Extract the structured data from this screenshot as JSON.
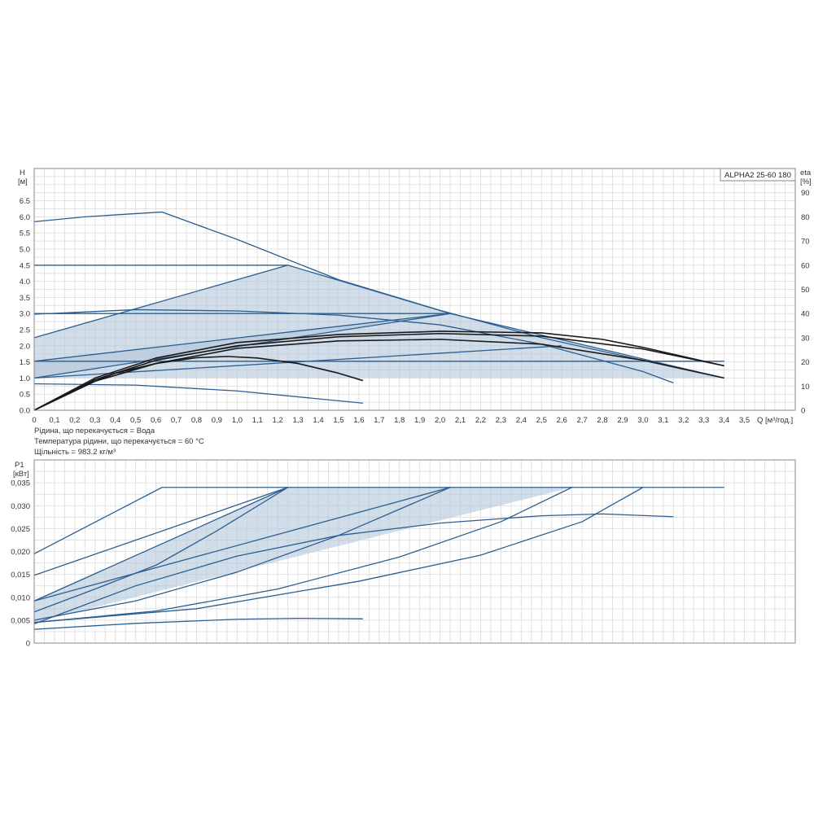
{
  "chart_data": [
    {
      "type": "line",
      "panel": "head",
      "legend": "ALPHA2 25-60 180",
      "y_label_symbol": "H",
      "y_label_unit": "[м]",
      "y2_label_symbol": "eta",
      "y2_label_unit": "[%]",
      "x_label": "Q [м³/год.]",
      "xlim": [
        0,
        3.75
      ],
      "ylim": [
        0,
        7.5
      ],
      "y2lim": [
        0,
        100
      ],
      "grid": true,
      "x_ticks": [
        "0",
        "0,1",
        "0,2",
        "0,3",
        "0,4",
        "0,5",
        "0,6",
        "0,7",
        "0,8",
        "0,9",
        "1,0",
        "1,1",
        "1,2",
        "1,3",
        "1,4",
        "1,5",
        "1,6",
        "1,7",
        "1,8",
        "1,9",
        "2,0",
        "2,1",
        "2,2",
        "2,3",
        "2,4",
        "2,5",
        "2,6",
        "2,7",
        "2,8",
        "2,9",
        "3,0",
        "3,1",
        "3,2",
        "3,3",
        "3,4",
        "3,5"
      ],
      "y_ticks": [
        "0.0",
        "0.5",
        "1.0",
        "1.5",
        "2.0",
        "2.5",
        "3.0",
        "3.5",
        "4.0",
        "4.5",
        "5.0",
        "5.5",
        "6.0",
        "6.5"
      ],
      "y2_ticks": [
        "0",
        "10",
        "20",
        "30",
        "40",
        "50",
        "60",
        "70",
        "80",
        "90"
      ],
      "shaded_regions": [
        {
          "x": [
            0,
            1.25,
            2.05,
            0,
            0
          ],
          "y": [
            2.25,
            4.5,
            3.0,
            1.0,
            2.25
          ]
        },
        {
          "x": [
            0,
            2.05,
            3.4,
            0,
            0
          ],
          "y": [
            1.52,
            3.0,
            1.0,
            1.0,
            1.52
          ]
        }
      ],
      "series": [
        {
          "x": [
            0,
            0.25,
            0.5,
            0.63,
            1.0,
            1.5,
            2.0,
            2.5,
            3.0,
            3.4
          ],
          "y": [
            5.85,
            6.0,
            6.1,
            6.15,
            5.3,
            4.05,
            3.1,
            2.25,
            1.55,
            1.0
          ],
          "color": "#2b5f91"
        },
        {
          "x": [
            0,
            1.25
          ],
          "y": [
            4.5,
            4.5
          ],
          "color": "#2b5f91"
        },
        {
          "x": [
            0,
            1.25
          ],
          "y": [
            2.25,
            4.5
          ],
          "color": "#2b5f91"
        },
        {
          "x": [
            1.25,
            2.05
          ],
          "y": [
            4.5,
            3.0
          ],
          "color": "#2b5f91"
        },
        {
          "x": [
            0,
            2.05
          ],
          "y": [
            3.0,
            3.0
          ],
          "color": "#2b5f91"
        },
        {
          "x": [
            0,
            2.05
          ],
          "y": [
            1.52,
            3.0
          ],
          "color": "#2b5f91"
        },
        {
          "x": [
            0,
            2.05
          ],
          "y": [
            1.0,
            3.0
          ],
          "color": "#2b5f91"
        },
        {
          "x": [
            2.05,
            3.4
          ],
          "y": [
            3.0,
            1.0
          ],
          "color": "#2b5f91"
        },
        {
          "x": [
            0,
            3.4
          ],
          "y": [
            1.52,
            1.52
          ],
          "color": "#2b5f91"
        },
        {
          "x": [
            0,
            0.5,
            1.0,
            1.5,
            2.0,
            2.5,
            3.0,
            3.15
          ],
          "y": [
            2.98,
            3.12,
            3.08,
            2.95,
            2.65,
            2.05,
            1.2,
            0.85
          ],
          "color": "#2b5f91"
        },
        {
          "x": [
            0,
            0.5,
            1.0,
            1.62
          ],
          "y": [
            0.82,
            0.78,
            0.6,
            0.22
          ],
          "color": "#2b5f91"
        },
        {
          "x": [
            0,
            2.6
          ],
          "y": [
            1.0,
            2.0
          ],
          "color": "#2b5f91"
        },
        {
          "x": [
            0,
            0.2,
            0.4,
            0.6,
            0.8,
            0.95,
            1.1,
            1.3,
            1.5,
            1.62
          ],
          "y": [
            0,
            0.65,
            1.15,
            1.45,
            1.63,
            1.67,
            1.62,
            1.45,
            1.15,
            0.92
          ],
          "color": "#1a1a1a"
        },
        {
          "x": [
            0,
            0.3,
            0.6,
            1.0,
            1.5,
            2.0,
            2.5,
            3.0,
            3.4
          ],
          "y": [
            0,
            0.95,
            1.55,
            2.0,
            2.28,
            2.38,
            2.3,
            1.9,
            1.38
          ],
          "color": "#1a1a1a"
        },
        {
          "x": [
            0,
            0.3,
            0.6,
            1.0,
            1.5,
            2.0,
            2.5,
            2.8,
            3.0,
            3.4
          ],
          "y": [
            0,
            1.0,
            1.62,
            2.1,
            2.35,
            2.45,
            2.4,
            2.2,
            1.95,
            1.38
          ],
          "color": "#1a1a1a"
        },
        {
          "x": [
            0,
            0.3,
            0.6,
            1.0,
            1.5,
            2.0,
            2.5,
            3.0,
            3.4
          ],
          "y": [
            0,
            0.9,
            1.45,
            1.92,
            2.15,
            2.2,
            2.05,
            1.55,
            1.0
          ],
          "color": "#1a1a1a"
        }
      ]
    },
    {
      "type": "line",
      "panel": "power",
      "y_label_symbol": "P1",
      "y_label_unit": "[кВт]",
      "xlim": [
        0,
        3.75
      ],
      "ylim": [
        0,
        0.04
      ],
      "grid": true,
      "y_ticks": [
        "0",
        "0,005",
        "0,010",
        "0,015",
        "0,020",
        "0,025",
        "0,030",
        "0,035"
      ],
      "shaded_regions": [
        {
          "x": [
            0,
            1.25,
            2.05,
            0,
            0
          ],
          "y": [
            0.0092,
            0.034,
            0.034,
            0.0045,
            0.0092
          ]
        },
        {
          "x": [
            0,
            2.05,
            2.65,
            0,
            0
          ],
          "y": [
            0.0045,
            0.034,
            0.034,
            0.0045,
            0.0045
          ]
        }
      ],
      "series": [
        {
          "x": [
            0,
            0.63
          ],
          "y": [
            0.0195,
            0.034
          ],
          "color": "#2b5f91"
        },
        {
          "x": [
            0.63,
            3.4
          ],
          "y": [
            0.034,
            0.034
          ],
          "color": "#2b5f91"
        },
        {
          "x": [
            0,
            1.25
          ],
          "y": [
            0.0148,
            0.034
          ],
          "color": "#2b5f91"
        },
        {
          "x": [
            0,
            1.25
          ],
          "y": [
            0.0092,
            0.034
          ],
          "color": "#2b5f91"
        },
        {
          "x": [
            0,
            0.3,
            0.6,
            0.9,
            1.25
          ],
          "y": [
            0.0068,
            0.0118,
            0.017,
            0.0245,
            0.034
          ],
          "color": "#2b5f91"
        },
        {
          "x": [
            0,
            2.05
          ],
          "y": [
            0.0092,
            0.034
          ],
          "color": "#2b5f91"
        },
        {
          "x": [
            0,
            0.5,
            1.0,
            1.5,
            2.05
          ],
          "y": [
            0.005,
            0.0092,
            0.0155,
            0.0235,
            0.034
          ],
          "color": "#2b5f91"
        },
        {
          "x": [
            0,
            0.6,
            1.2,
            1.8,
            2.3,
            2.65
          ],
          "y": [
            0.0045,
            0.007,
            0.0118,
            0.0188,
            0.0265,
            0.034
          ],
          "color": "#2b5f91"
        },
        {
          "x": [
            0,
            0.8,
            1.6,
            2.2,
            2.7,
            3.0
          ],
          "y": [
            0.0045,
            0.0075,
            0.0135,
            0.0192,
            0.0265,
            0.034
          ],
          "color": "#2b5f91"
        },
        {
          "x": [
            0,
            0.5,
            1.0,
            1.5,
            2.0,
            2.5,
            2.8,
            3.15
          ],
          "y": [
            0.0042,
            0.0125,
            0.019,
            0.0235,
            0.0262,
            0.0278,
            0.0282,
            0.0276
          ],
          "color": "#2b5f91"
        },
        {
          "x": [
            0,
            0.5,
            1.0,
            1.3,
            1.62
          ],
          "y": [
            0.003,
            0.0043,
            0.0052,
            0.0054,
            0.0053
          ],
          "color": "#2b5f91"
        }
      ]
    }
  ],
  "fluid_info": [
    "Рідина, що перекачується = Вода",
    "Температура рідини, що перекачується = 60 °C",
    "Щільність = 983.2 кг/м³"
  ]
}
